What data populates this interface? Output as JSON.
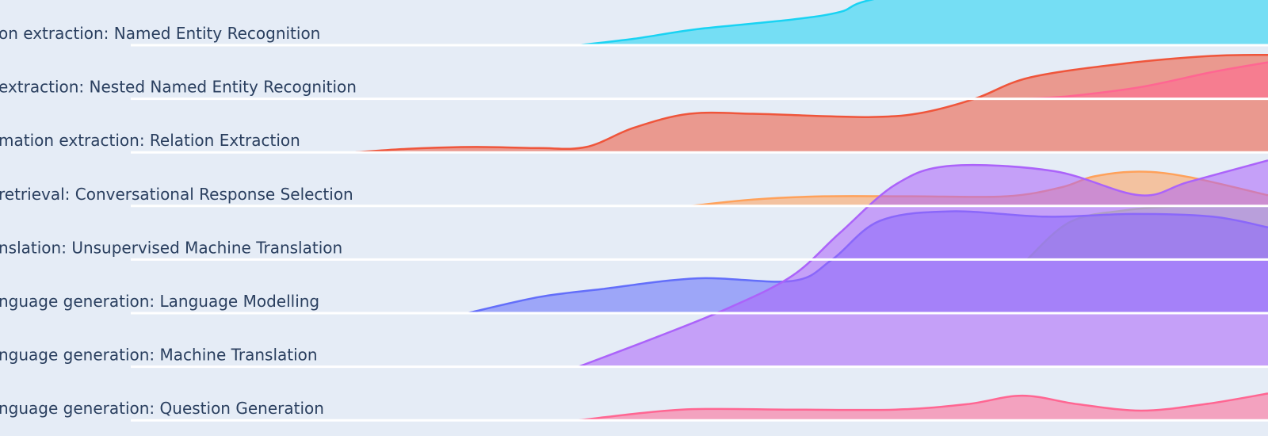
{
  "chart_data": {
    "type": "area",
    "subtype": "ridgeline",
    "background": "#e5ecf6",
    "grid": true,
    "legend": "none",
    "rows": [
      {
        "label": "on extraction: Named Entity Recognition"
      },
      {
        "label": "extraction: Nested Named Entity Recognition"
      },
      {
        "label": "mation extraction: Relation Extraction"
      },
      {
        "label": "retrieval: Conversational Response Selection"
      },
      {
        "label": "nslation: Unsupervised Machine Translation"
      },
      {
        "label": "nguage generation: Language Modelling"
      },
      {
        "label": "nguage generation: Machine Translation"
      },
      {
        "label": "nguage generation: Question Generation"
      }
    ],
    "series": [
      {
        "row": 0,
        "color": "#19d3f3",
        "points": [
          [
            730,
            0
          ],
          [
            800,
            0.12
          ],
          [
            880,
            0.3
          ],
          [
            1000,
            0.48
          ],
          [
            1060,
            0.62
          ],
          [
            1100,
            0.85
          ],
          [
            1250,
            1.25
          ],
          [
            1600,
            1.4
          ]
        ]
      },
      {
        "row": 2,
        "color": "#ef553b",
        "points": [
          [
            448,
            0
          ],
          [
            520,
            0.07
          ],
          [
            600,
            0.1
          ],
          [
            680,
            0.08
          ],
          [
            740,
            0.1
          ],
          [
            800,
            0.46
          ],
          [
            870,
            0.72
          ],
          [
            950,
            0.72
          ],
          [
            1030,
            0.68
          ],
          [
            1100,
            0.66
          ],
          [
            1160,
            0.73
          ],
          [
            1230,
            1.0
          ],
          [
            1300,
            1.4
          ],
          [
            1420,
            1.66
          ],
          [
            1530,
            1.8
          ],
          [
            1600,
            1.82
          ]
        ]
      },
      {
        "row": 1,
        "color": "#ff6692",
        "points": [
          [
            1296,
            0
          ],
          [
            1350,
            0.05
          ],
          [
            1440,
            0.22
          ],
          [
            1530,
            0.5
          ],
          [
            1600,
            0.68
          ]
        ]
      },
      {
        "row": 3,
        "color": "#ffa15a",
        "points": [
          [
            872,
            0
          ],
          [
            950,
            0.12
          ],
          [
            1040,
            0.18
          ],
          [
            1150,
            0.18
          ],
          [
            1270,
            0.18
          ],
          [
            1340,
            0.35
          ],
          [
            1380,
            0.55
          ],
          [
            1438,
            0.64
          ],
          [
            1500,
            0.54
          ],
          [
            1600,
            0.2
          ]
        ]
      },
      {
        "row": 4,
        "color": "#b6e880",
        "points": [
          [
            1296,
            0
          ],
          [
            1350,
            0.7
          ],
          [
            1420,
            0.92
          ],
          [
            1500,
            1.0
          ],
          [
            1600,
            1.0
          ]
        ]
      },
      {
        "row": 5,
        "color": "#636efa",
        "points": [
          [
            590,
            0
          ],
          [
            680,
            0.3
          ],
          [
            760,
            0.45
          ],
          [
            880,
            0.65
          ],
          [
            1000,
            0.6
          ],
          [
            1050,
            1.0
          ],
          [
            1110,
            1.72
          ],
          [
            1200,
            1.9
          ],
          [
            1320,
            1.8
          ],
          [
            1430,
            1.85
          ],
          [
            1530,
            1.8
          ],
          [
            1600,
            1.6
          ]
        ]
      },
      {
        "row": 6,
        "color": "#ab63fa",
        "points": [
          [
            730,
            0
          ],
          [
            830,
            0.56
          ],
          [
            920,
            1.1
          ],
          [
            1000,
            1.7
          ],
          [
            1060,
            2.5
          ],
          [
            1130,
            3.4
          ],
          [
            1200,
            3.75
          ],
          [
            1330,
            3.65
          ],
          [
            1438,
            3.2
          ],
          [
            1500,
            3.45
          ],
          [
            1600,
            3.85
          ]
        ]
      },
      {
        "row": 7,
        "color": "#ff6692",
        "points": [
          [
            730,
            0
          ],
          [
            860,
            0.2
          ],
          [
            1000,
            0.2
          ],
          [
            1130,
            0.2
          ],
          [
            1220,
            0.3
          ],
          [
            1290,
            0.46
          ],
          [
            1360,
            0.3
          ],
          [
            1440,
            0.18
          ],
          [
            1520,
            0.3
          ],
          [
            1600,
            0.5
          ]
        ]
      }
    ]
  }
}
